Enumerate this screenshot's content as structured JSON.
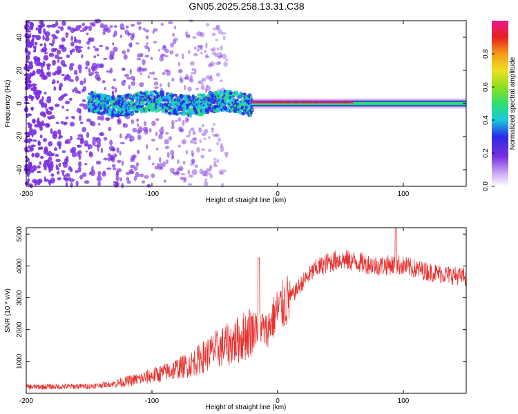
{
  "figure_title": "GN05.2025.258.13.31.C38",
  "chart_data": [
    {
      "type": "heatmap",
      "title": "GN05.2025.258.13.31.C38",
      "xlabel": "Height of straight line (km)",
      "ylabel": "Frequency (Hz)",
      "xlim": [
        -200,
        150
      ],
      "ylim": [
        -50,
        50
      ],
      "xticks": [
        -200,
        -100,
        0,
        100
      ],
      "yticks": [
        -40,
        -20,
        0,
        20,
        40
      ],
      "colorbar": {
        "label": "Normalized spectral amplitude",
        "range": [
          0,
          1
        ],
        "ticks": [
          "0.0",
          "0.2",
          "0.4",
          "0.6",
          "0.8"
        ]
      },
      "band": {
        "center_frequency": 0,
        "segments": [
          {
            "x_start": -150,
            "x_end": -20,
            "description": "broad noisy band, half-width about 6 Hz, amplitude 0.2-0.4"
          },
          {
            "x_start": -20,
            "x_end": 150,
            "description": "narrow band, half-width about 3 Hz, peak amplitude near 1.0"
          }
        ],
        "scatter_noise_region": [
          -200,
          -80
        ]
      }
    },
    {
      "type": "line",
      "xlabel": "Height of straight line (km)",
      "ylabel": "SNR (10 * v/v)",
      "xlim": [
        -200,
        150
      ],
      "ylim": [
        0,
        5200
      ],
      "xticks": [
        -200,
        -100,
        0,
        100
      ],
      "yticks": [
        1000,
        2000,
        3000,
        4000,
        5000
      ],
      "series": [
        {
          "name": "SNR",
          "color": "#e8322f",
          "envelope": [
            {
              "x": -200,
              "y": 200
            },
            {
              "x": -150,
              "y": 220
            },
            {
              "x": -130,
              "y": 300
            },
            {
              "x": -110,
              "y": 450
            },
            {
              "x": -90,
              "y": 650
            },
            {
              "x": -70,
              "y": 900
            },
            {
              "x": -50,
              "y": 1350
            },
            {
              "x": -30,
              "y": 1700
            },
            {
              "x": -20,
              "y": 2000
            },
            {
              "x": -14,
              "y": 2200
            },
            {
              "x": -10,
              "y": 1900
            },
            {
              "x": 0,
              "y": 2600
            },
            {
              "x": 10,
              "y": 3000
            },
            {
              "x": 20,
              "y": 3500
            },
            {
              "x": 30,
              "y": 3900
            },
            {
              "x": 40,
              "y": 4100
            },
            {
              "x": 50,
              "y": 4200
            },
            {
              "x": 60,
              "y": 4150
            },
            {
              "x": 80,
              "y": 4000
            },
            {
              "x": 95,
              "y": 4050
            },
            {
              "x": 110,
              "y": 3900
            },
            {
              "x": 130,
              "y": 3750
            },
            {
              "x": 150,
              "y": 3650
            }
          ],
          "peaks": [
            {
              "x": -15,
              "y": 4250
            },
            {
              "x": 94,
              "y": 5200
            }
          ]
        }
      ]
    }
  ],
  "colors": {
    "line": "#e8322f",
    "band_low": "#7a2fe0",
    "band_high": "#e02020"
  }
}
